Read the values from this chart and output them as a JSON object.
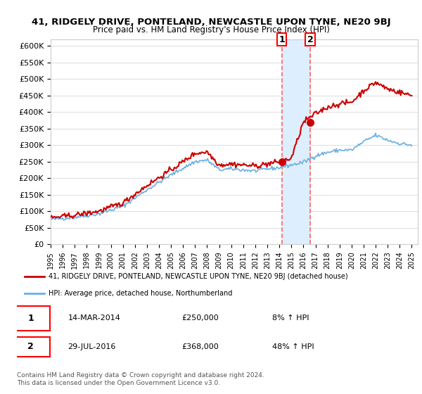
{
  "title": "41, RIDGELY DRIVE, PONTELAND, NEWCASTLE UPON TYNE, NE20 9BJ",
  "subtitle": "Price paid vs. HM Land Registry's House Price Index (HPI)",
  "legend_line1": "41, RIDGELY DRIVE, PONTELAND, NEWCASTLE UPON TYNE, NE20 9BJ (detached house)",
  "legend_line2": "HPI: Average price, detached house, Northumberland",
  "transaction1_label": "1",
  "transaction1_date": "14-MAR-2014",
  "transaction1_price": "£250,000",
  "transaction1_hpi": "8% ↑ HPI",
  "transaction2_label": "2",
  "transaction2_date": "29-JUL-2016",
  "transaction2_price": "£368,000",
  "transaction2_hpi": "48% ↑ HPI",
  "footer": "Contains HM Land Registry data © Crown copyright and database right 2024.\nThis data is licensed under the Open Government Licence v3.0.",
  "ylim": [
    0,
    620000
  ],
  "yticks": [
    0,
    50000,
    100000,
    150000,
    200000,
    250000,
    300000,
    350000,
    400000,
    450000,
    500000,
    550000,
    600000
  ],
  "hpi_color": "#6ab0e0",
  "price_color": "#cc0000",
  "dot_color": "#cc0000",
  "vline_color": "#ff6666",
  "highlight_color": "#ddeeff",
  "transaction1_x": 2014.2,
  "transaction2_x": 2016.58,
  "background_color": "#ffffff",
  "plot_bg_color": "#ffffff"
}
